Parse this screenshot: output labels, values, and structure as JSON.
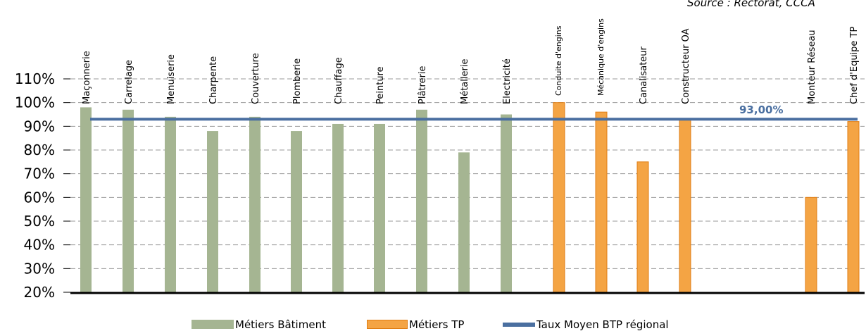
{
  "chart_data": {
    "type": "bar",
    "source_note": "Source : Rectorat, CCCA",
    "categories": [
      "Maçonnerie",
      "Carrelage",
      "Menuiserie",
      "Charpente",
      "Couverture",
      "Plomberie",
      "Chauffage",
      "Peinture",
      "Plâtrerie",
      "Métallerie",
      "Electricité",
      "Conduite d'engins",
      "Mécanique d'engins",
      "Canalisateur",
      "Constructeur OA",
      "Monteur Réseau",
      "Chef d'Equipe TP"
    ],
    "series": [
      {
        "name": "Métiers Bâtiment",
        "color": "#a5b592",
        "values": [
          98,
          97,
          94,
          88,
          94,
          88,
          91,
          91,
          97,
          79,
          95,
          null,
          null,
          null,
          null,
          null,
          null
        ]
      },
      {
        "name": "Métiers TP",
        "color": "#f4a444",
        "values": [
          null,
          null,
          null,
          null,
          null,
          null,
          null,
          null,
          null,
          null,
          null,
          100,
          96,
          75,
          93,
          60,
          92
        ]
      }
    ],
    "reference_line": {
      "name": "Taux Moyen BTP régional",
      "value": 93,
      "label": "93,00%",
      "color": "#4a6fa0"
    },
    "y_ticks": [
      "20%",
      "30%",
      "40%",
      "50%",
      "60%",
      "70%",
      "80%",
      "90%",
      "100%",
      "110%"
    ],
    "ylim": [
      20,
      110
    ],
    "grid": true,
    "legend_position": "bottom"
  }
}
